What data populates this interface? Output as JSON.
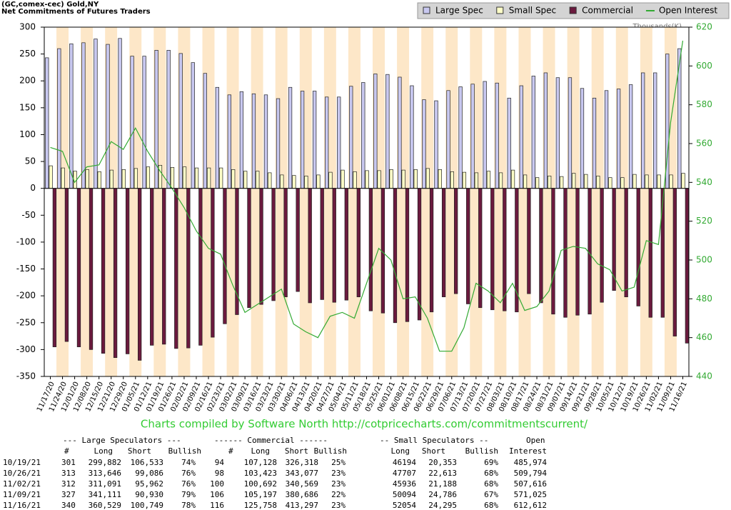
{
  "chart_data": {
    "type": "bar",
    "title": "(GC,comex-cec) Gold,NY",
    "subtitle": "Net Commitments of Futures Traders",
    "y2label": "Thousands(K)",
    "legend": "top-right",
    "categories": [
      "11/17/20",
      "11/24/20",
      "12/01/20",
      "12/08/20",
      "12/15/20",
      "12/21/20",
      "12/29/20",
      "01/05/21",
      "01/12/21",
      "01/19/21",
      "01/26/21",
      "02/02/21",
      "02/09/21",
      "02/16/21",
      "02/23/21",
      "03/02/21",
      "03/09/21",
      "03/16/21",
      "03/23/21",
      "03/30/21",
      "04/06/21",
      "04/13/21",
      "04/20/21",
      "04/27/21",
      "05/04/21",
      "05/11/21",
      "05/18/21",
      "05/25/21",
      "06/01/21",
      "06/08/21",
      "06/15/21",
      "06/22/21",
      "06/29/21",
      "07/06/21",
      "07/13/21",
      "07/20/21",
      "07/27/21",
      "08/03/21",
      "08/10/21",
      "08/17/21",
      "08/24/21",
      "08/31/21",
      "09/07/21",
      "09/14/21",
      "09/21/21",
      "09/28/21",
      "10/05/21",
      "10/12/21",
      "10/19/21",
      "10/26/21",
      "11/02/21",
      "11/09/21",
      "11/16/21"
    ],
    "series": [
      {
        "name": "Large Spec",
        "color": "#c8c8f0",
        "type": "bar",
        "values": [
          243,
          260,
          269,
          271,
          278,
          268,
          279,
          246,
          246,
          257,
          257,
          251,
          234,
          214,
          188,
          174,
          180,
          176,
          174,
          167,
          188,
          181,
          181,
          170,
          170,
          190,
          197,
          213,
          212,
          207,
          191,
          165,
          163,
          182,
          189,
          194,
          199,
          196,
          168,
          191,
          209,
          215,
          206,
          206,
          186,
          168,
          182,
          185,
          193,
          215,
          215,
          250,
          260
        ]
      },
      {
        "name": "Small Spec",
        "color": "#ffffc8",
        "type": "bar",
        "values": [
          42,
          38,
          32,
          35,
          31,
          34,
          35,
          37,
          40,
          43,
          39,
          40,
          38,
          38,
          38,
          35,
          32,
          32,
          29,
          25,
          24,
          23,
          25,
          30,
          34,
          31,
          33,
          33,
          35,
          34,
          35,
          37,
          35,
          31,
          30,
          29,
          32,
          29,
          34,
          25,
          20,
          23,
          22,
          28,
          26,
          23,
          20,
          20,
          26,
          25,
          25,
          25,
          28
        ]
      },
      {
        "name": "Commercial",
        "color": "#6b1a3e",
        "type": "bar",
        "values": [
          -295,
          -285,
          -295,
          -300,
          -307,
          -315,
          -308,
          -320,
          -292,
          -290,
          -298,
          -297,
          -292,
          -277,
          -252,
          -235,
          -222,
          -216,
          -209,
          -202,
          -192,
          -213,
          -207,
          -212,
          -208,
          -202,
          -228,
          -232,
          -250,
          -248,
          -245,
          -230,
          -202,
          -196,
          -215,
          -222,
          -226,
          -228,
          -230,
          -196,
          -213,
          -234,
          -240,
          -236,
          -234,
          -212,
          -190,
          -202,
          -219,
          -240,
          -240,
          -275,
          -288
        ]
      },
      {
        "name": "Open Interest",
        "color": "#33aa33",
        "type": "line",
        "axis": "y2",
        "values": [
          558,
          556,
          540,
          548,
          549,
          561,
          557,
          568,
          556,
          546,
          537,
          527,
          515,
          506,
          503,
          487,
          473,
          477,
          481,
          485,
          467,
          463,
          460,
          471,
          473,
          470,
          488,
          506,
          500,
          480,
          481,
          470,
          453,
          453,
          465,
          488,
          484,
          478,
          488,
          474,
          476,
          484,
          505,
          507,
          506,
          498,
          495,
          484,
          486,
          510,
          508,
          571,
          613
        ]
      }
    ],
    "ylim": [
      -350,
      300
    ],
    "yticks": [
      300,
      250,
      200,
      150,
      100,
      50,
      0,
      -50,
      -100,
      -150,
      -200,
      -250,
      -300,
      -350
    ],
    "y2lim": [
      440,
      620
    ],
    "y2ticks": [
      620,
      600,
      580,
      560,
      540,
      520,
      500,
      480,
      460,
      440
    ]
  },
  "footer": "Charts compiled by Software North  http://cotpricecharts.com/commitmentscurrent/",
  "table": {
    "group_headers": [
      "--- Large Speculators ---",
      "------ Commercial ------",
      "-- Small Speculators --",
      "Open"
    ],
    "headers": [
      "#",
      "Long",
      "Short",
      "Bullish",
      "#",
      "Long",
      "Short",
      "Bullish",
      "Long",
      "Short",
      "Bullish",
      "Interest"
    ],
    "rows": [
      [
        "10/19/21",
        "301",
        "299,882",
        "106,533",
        "74%",
        "94",
        "107,128",
        "326,318",
        "25%",
        "46194",
        "20,353",
        "69%",
        "485,974"
      ],
      [
        "10/26/21",
        "313",
        "313,646",
        "99,086",
        "76%",
        "98",
        "103,423",
        "343,077",
        "23%",
        "47707",
        "22,613",
        "68%",
        "509,794"
      ],
      [
        "11/02/21",
        "312",
        "311,091",
        "95,962",
        "76%",
        "100",
        "100,692",
        "340,569",
        "23%",
        "45936",
        "21,188",
        "68%",
        "507,616"
      ],
      [
        "11/09/21",
        "327",
        "341,111",
        "90,930",
        "79%",
        "106",
        "105,197",
        "380,686",
        "22%",
        "50094",
        "24,786",
        "67%",
        "571,025"
      ],
      [
        "11/16/21",
        "340",
        "360,529",
        "100,749",
        "78%",
        "116",
        "125,758",
        "413,297",
        "23%",
        "52054",
        "24,295",
        "68%",
        "612,612"
      ]
    ]
  }
}
